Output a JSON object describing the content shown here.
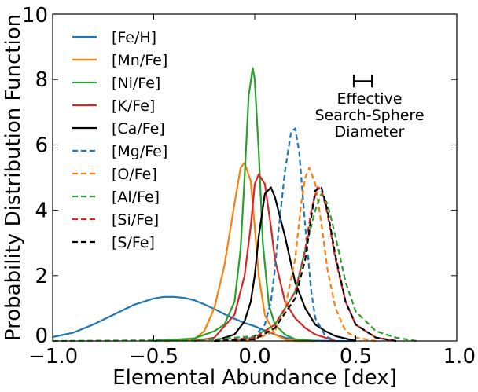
{
  "chart_data": {
    "type": "line",
    "xlabel": "Elemental Abundance [dex]",
    "ylabel": "Probability Distribution Function",
    "xlim": [
      -1.0,
      1.0
    ],
    "ylim": [
      0,
      10
    ],
    "xticks": [
      -1.0,
      -0.5,
      0.0,
      0.5,
      1.0
    ],
    "xtick_labels": [
      "−1.0",
      "−0.5",
      "0.0",
      "0.5",
      "1.0"
    ],
    "yticks": [
      0,
      2,
      4,
      6,
      8,
      10
    ],
    "ytick_labels": [
      "0",
      "2",
      "4",
      "6",
      "8",
      "10"
    ],
    "legend_position": "upper-left",
    "annotation": {
      "lines": [
        "Effective",
        "Search-Sphere",
        "Diameter"
      ],
      "bar_x": [
        0.49,
        0.58
      ],
      "bar_y": 7.95
    },
    "series": [
      {
        "name": "[Fe/H]",
        "color": "#1f77b4",
        "style": "solid",
        "x": [
          -1.0,
          -0.9,
          -0.8,
          -0.7,
          -0.6,
          -0.55,
          -0.5,
          -0.45,
          -0.4,
          -0.35,
          -0.3,
          -0.25,
          -0.2,
          -0.15,
          -0.1,
          -0.05,
          0.0,
          0.05,
          0.1,
          0.15,
          0.2,
          0.25,
          0.3,
          0.4,
          0.5
        ],
        "y": [
          0.12,
          0.25,
          0.5,
          0.8,
          1.1,
          1.2,
          1.3,
          1.35,
          1.35,
          1.32,
          1.25,
          1.12,
          0.98,
          0.82,
          0.68,
          0.55,
          0.45,
          0.32,
          0.2,
          0.1,
          0.05,
          0.02,
          0.01,
          0.0,
          0.0
        ]
      },
      {
        "name": "[Mn/Fe]",
        "color": "#ff7f0e",
        "style": "solid",
        "x": [
          -0.45,
          -0.3,
          -0.25,
          -0.2,
          -0.15,
          -0.1,
          -0.07,
          -0.05,
          -0.02,
          0.0,
          0.02,
          0.05,
          0.1,
          0.15,
          0.2,
          0.3
        ],
        "y": [
          0.0,
          0.05,
          0.3,
          1.0,
          2.3,
          4.2,
          5.3,
          5.45,
          4.9,
          3.5,
          2.0,
          0.8,
          0.2,
          0.05,
          0.0,
          0.0
        ]
      },
      {
        "name": "[Ni/Fe]",
        "color": "#2ca02c",
        "style": "solid",
        "x": [
          -0.5,
          -0.3,
          -0.2,
          -0.15,
          -0.1,
          -0.07,
          -0.05,
          -0.03,
          -0.01,
          0.0,
          0.02,
          0.04,
          0.07,
          0.1,
          0.15,
          0.2,
          0.3
        ],
        "y": [
          0.0,
          0.08,
          0.3,
          0.5,
          1.2,
          2.8,
          5.0,
          7.5,
          8.35,
          8.0,
          5.8,
          3.0,
          1.1,
          0.5,
          0.2,
          0.05,
          0.0
        ]
      },
      {
        "name": "[K/Fe]",
        "color": "#d62728",
        "style": "solid",
        "x": [
          -0.3,
          -0.2,
          -0.1,
          -0.05,
          -0.02,
          0.0,
          0.02,
          0.05,
          0.08,
          0.1,
          0.15,
          0.2,
          0.25,
          0.3,
          0.4
        ],
        "y": [
          0.0,
          0.1,
          0.8,
          2.0,
          3.5,
          4.8,
          5.1,
          4.8,
          3.5,
          2.5,
          1.2,
          0.7,
          0.4,
          0.2,
          0.0
        ]
      },
      {
        "name": "[Ca/Fe]",
        "color": "#000000",
        "style": "solid",
        "x": [
          -0.2,
          -0.1,
          -0.05,
          -0.02,
          0.0,
          0.02,
          0.05,
          0.08,
          0.1,
          0.15,
          0.2,
          0.25,
          0.3,
          0.35,
          0.4,
          0.5
        ],
        "y": [
          0.0,
          0.2,
          0.6,
          1.2,
          2.0,
          3.2,
          4.5,
          4.7,
          4.4,
          3.2,
          1.8,
          1.0,
          0.5,
          0.3,
          0.15,
          0.0
        ]
      },
      {
        "name": "[Mg/Fe]",
        "color": "#1f77b4",
        "style": "dashed",
        "x": [
          -0.1,
          0.0,
          0.05,
          0.08,
          0.1,
          0.12,
          0.15,
          0.18,
          0.2,
          0.22,
          0.25,
          0.28,
          0.3,
          0.35,
          0.4
        ],
        "y": [
          0.0,
          0.15,
          0.5,
          1.2,
          2.2,
          3.5,
          5.2,
          6.4,
          6.5,
          5.8,
          3.5,
          1.5,
          0.7,
          0.15,
          0.0
        ]
      },
      {
        "name": "[O/Fe]",
        "color": "#ff7f0e",
        "style": "dashed",
        "x": [
          -0.1,
          0.0,
          0.1,
          0.15,
          0.2,
          0.23,
          0.25,
          0.27,
          0.3,
          0.33,
          0.36,
          0.4,
          0.45,
          0.5,
          0.6
        ],
        "y": [
          0.0,
          0.05,
          0.3,
          1.0,
          2.5,
          4.2,
          5.0,
          5.3,
          4.8,
          3.6,
          2.2,
          1.0,
          0.3,
          0.1,
          0.0
        ]
      },
      {
        "name": "[Al/Fe]",
        "color": "#2ca02c",
        "style": "dashed",
        "x": [
          -1.0,
          -0.5,
          -0.2,
          0.0,
          0.1,
          0.2,
          0.25,
          0.3,
          0.33,
          0.36,
          0.4,
          0.45,
          0.5,
          0.6,
          0.7,
          0.8
        ],
        "y": [
          0.0,
          0.02,
          0.05,
          0.15,
          0.5,
          1.5,
          2.8,
          4.0,
          4.5,
          4.2,
          3.2,
          1.8,
          0.9,
          0.3,
          0.1,
          0.0
        ]
      },
      {
        "name": "[Si/Fe]",
        "color": "#d62728",
        "style": "dashed",
        "x": [
          -0.2,
          0.0,
          0.1,
          0.2,
          0.25,
          0.28,
          0.31,
          0.33,
          0.36,
          0.4,
          0.45,
          0.5,
          0.6,
          0.7
        ],
        "y": [
          0.0,
          0.1,
          0.5,
          1.5,
          2.8,
          4.0,
          4.7,
          4.65,
          3.9,
          2.5,
          1.2,
          0.5,
          0.1,
          0.0
        ]
      },
      {
        "name": "[S/Fe]",
        "color": "#000000",
        "style": "dashed",
        "x": [
          -0.2,
          0.0,
          0.1,
          0.2,
          0.25,
          0.28,
          0.3,
          0.33,
          0.36,
          0.4,
          0.45,
          0.5,
          0.6,
          0.7
        ],
        "y": [
          0.0,
          0.05,
          0.4,
          1.3,
          2.5,
          3.8,
          4.6,
          4.7,
          4.0,
          2.6,
          1.2,
          0.5,
          0.1,
          0.0
        ]
      }
    ]
  }
}
